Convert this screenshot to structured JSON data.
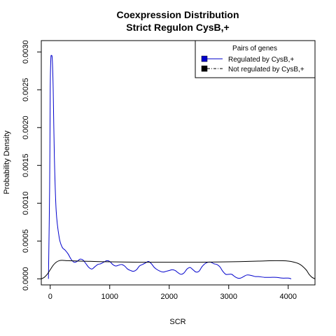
{
  "chart_data": {
    "type": "line",
    "title": "Coexpression Distribution",
    "subtitle": "Strict Regulon CysB,+",
    "xlabel": "SCR",
    "ylabel": "Probability Density",
    "xlim": [
      -150,
      4450
    ],
    "ylim": [
      -8e-05,
      0.00315
    ],
    "xticks": [
      0,
      1000,
      2000,
      3000,
      4000
    ],
    "xtick_labels": [
      "0",
      "1000",
      "2000",
      "3000",
      "4000"
    ],
    "yticks": [
      0.0,
      0.0005,
      0.001,
      0.0015,
      0.002,
      0.0025,
      0.003
    ],
    "ytick_labels": [
      "0.0000",
      "0.0005",
      "0.0010",
      "0.0015",
      "0.0020",
      "0.0025",
      "0.0030"
    ],
    "grid": false,
    "legend": {
      "title": "Pairs of genes",
      "placement": "top-right",
      "entries": [
        "Regulated by  CysB,+",
        "Not regulated by  CysB,+"
      ]
    },
    "series": [
      {
        "name": "Regulated by  CysB,+",
        "color": "#0000cc",
        "x": [
          -30,
          -10,
          0,
          10,
          20,
          35,
          50,
          70,
          100,
          150,
          200,
          250,
          300,
          350,
          400,
          450,
          500,
          550,
          600,
          650,
          700,
          750,
          800,
          850,
          900,
          950,
          1000,
          1050,
          1100,
          1150,
          1200,
          1250,
          1300,
          1350,
          1400,
          1450,
          1500,
          1550,
          1600,
          1650,
          1700,
          1750,
          1800,
          1850,
          1900,
          1950,
          2000,
          2050,
          2100,
          2150,
          2200,
          2250,
          2300,
          2350,
          2400,
          2450,
          2500,
          2550,
          2600,
          2650,
          2700,
          2750,
          2800,
          2850,
          2900,
          2950,
          3000,
          3050,
          3100,
          3150,
          3200,
          3250,
          3300,
          3350,
          3400,
          3450,
          3500,
          3600,
          3700,
          3800,
          3900,
          4000,
          4050
        ],
        "y": [
          0.0,
          0.0012,
          0.0025,
          0.0029,
          0.00295,
          0.0029,
          0.0025,
          0.0016,
          0.0009,
          0.00055,
          0.00042,
          0.00038,
          0.00033,
          0.00026,
          0.00022,
          0.00023,
          0.00026,
          0.00025,
          0.0002,
          0.00015,
          0.00013,
          0.00016,
          0.00019,
          0.0002,
          0.00022,
          0.00024,
          0.00023,
          0.00019,
          0.00017,
          0.00018,
          0.00019,
          0.00017,
          0.00013,
          0.00011,
          0.0001,
          0.00012,
          0.00017,
          0.00019,
          0.00021,
          0.00023,
          0.0002,
          0.00015,
          0.00012,
          0.0001,
          9e-05,
          0.0001,
          0.00011,
          0.00012,
          0.00011,
          8e-05,
          6e-05,
          8e-05,
          0.00013,
          0.00015,
          0.00012,
          9e-05,
          0.0001,
          0.00016,
          0.0002,
          0.00022,
          0.00022,
          0.0002,
          0.00019,
          0.00016,
          0.0001,
          6e-05,
          6e-05,
          6e-05,
          3e-05,
          1e-05,
          1e-05,
          3e-05,
          5e-05,
          5e-05,
          4e-05,
          3e-05,
          3e-05,
          2e-05,
          2e-05,
          2e-05,
          1e-05,
          1e-05,
          0.0
        ]
      },
      {
        "name": "Not regulated by  CysB,+",
        "color": "#000000",
        "x": [
          -150,
          -100,
          -50,
          0,
          50,
          100,
          150,
          200,
          300,
          500,
          1000,
          1500,
          2000,
          2500,
          3000,
          3500,
          3800,
          4000,
          4100,
          4200,
          4300,
          4350,
          4400,
          4450
        ],
        "y": [
          0.0,
          2e-05,
          6e-05,
          0.00012,
          0.00018,
          0.00022,
          0.00024,
          0.000245,
          0.00024,
          0.000235,
          0.000225,
          0.00022,
          0.00022,
          0.00022,
          0.000225,
          0.000235,
          0.00024,
          0.000235,
          0.00022,
          0.00019,
          0.00012,
          6e-05,
          2e-05,
          0.0
        ]
      }
    ]
  }
}
